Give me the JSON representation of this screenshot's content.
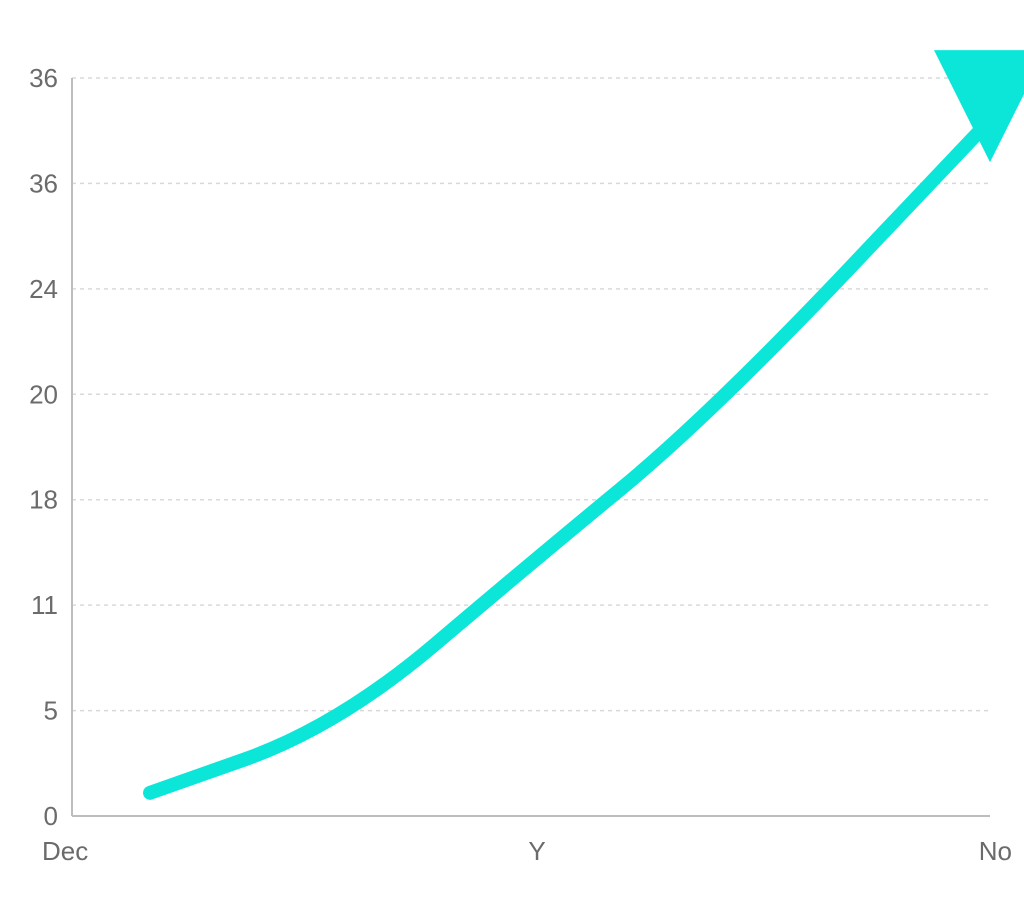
{
  "chart_data": {
    "type": "line",
    "title": "",
    "xlabel": "",
    "ylabel": "",
    "grid": true,
    "legend": "none",
    "arrow_end": true,
    "line_color": "#0BE6D8",
    "y_ticks": [
      "0",
      "5",
      "11",
      "18",
      "20",
      "24",
      "36",
      "36"
    ],
    "x_ticks": [
      "Dec",
      "Y",
      "No"
    ],
    "ylim": [
      0,
      7
    ],
    "xlim": [
      0,
      2
    ],
    "series": [
      {
        "x": [
          0.17,
          0.58,
          1.0,
          1.39,
          2.0
        ],
        "values": [
          0.22,
          0.85,
          2.4,
          3.8,
          6.6
        ]
      }
    ]
  }
}
